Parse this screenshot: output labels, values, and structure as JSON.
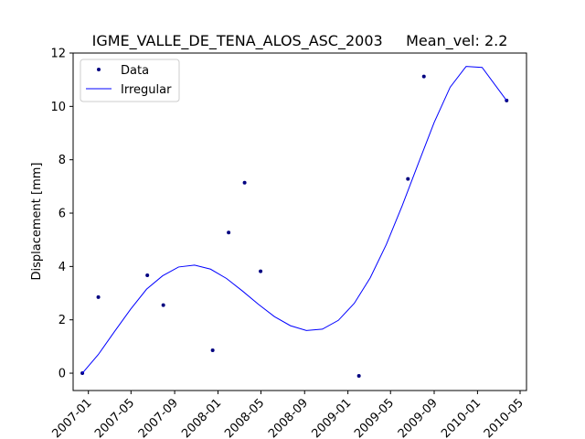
{
  "chart_data": {
    "type": "line",
    "title": "IGME_VALLE_DE_TENA_ALOS_ASC_2003     Mean_vel: 2.2",
    "xlabel": "",
    "ylabel": "Displacement [mm]",
    "x_range": [
      "2006-11-19",
      "2010-05-19"
    ],
    "ylim": [
      -0.65,
      12.0
    ],
    "x_ticks": [
      {
        "date": "2007-01-01",
        "label": "2007-01"
      },
      {
        "date": "2007-05-01",
        "label": "2007-05"
      },
      {
        "date": "2007-09-01",
        "label": "2007-09"
      },
      {
        "date": "2008-01-01",
        "label": "2008-01"
      },
      {
        "date": "2008-05-01",
        "label": "2008-05"
      },
      {
        "date": "2008-09-01",
        "label": "2008-09"
      },
      {
        "date": "2009-01-01",
        "label": "2009-01"
      },
      {
        "date": "2009-05-01",
        "label": "2009-05"
      },
      {
        "date": "2009-09-01",
        "label": "2009-09"
      },
      {
        "date": "2010-01-01",
        "label": "2010-01"
      },
      {
        "date": "2010-05-01",
        "label": "2010-05"
      }
    ],
    "y_ticks": [
      0,
      2,
      4,
      6,
      8,
      10,
      12
    ],
    "grid": false,
    "legend_position": "top-left",
    "series": [
      {
        "name": "Data",
        "kind": "scatter",
        "color": "#000080",
        "points": [
          {
            "x": "2006-12-15",
            "y": 0.0
          },
          {
            "x": "2007-01-29",
            "y": 2.85
          },
          {
            "x": "2007-06-16",
            "y": 3.67
          },
          {
            "x": "2007-07-31",
            "y": 2.55
          },
          {
            "x": "2007-12-17",
            "y": 0.86
          },
          {
            "x": "2008-01-31",
            "y": 5.27
          },
          {
            "x": "2008-03-16",
            "y": 7.14
          },
          {
            "x": "2008-04-30",
            "y": 3.82
          },
          {
            "x": "2009-02-01",
            "y": -0.1
          },
          {
            "x": "2009-06-19",
            "y": 7.28
          },
          {
            "x": "2009-08-03",
            "y": 11.12
          },
          {
            "x": "2010-03-24",
            "y": 10.22
          }
        ]
      },
      {
        "name": "Irregular",
        "kind": "line",
        "color": "#0000ff",
        "points": [
          {
            "x": "2006-12-15",
            "y": 0.0
          },
          {
            "x": "2007-01-29",
            "y": 0.7
          },
          {
            "x": "2007-03-15",
            "y": 1.55
          },
          {
            "x": "2007-04-30",
            "y": 2.4
          },
          {
            "x": "2007-06-14",
            "y": 3.15
          },
          {
            "x": "2007-07-29",
            "y": 3.65
          },
          {
            "x": "2007-09-12",
            "y": 3.98
          },
          {
            "x": "2007-10-27",
            "y": 4.05
          },
          {
            "x": "2007-12-11",
            "y": 3.9
          },
          {
            "x": "2008-01-25",
            "y": 3.55
          },
          {
            "x": "2008-03-10",
            "y": 3.08
          },
          {
            "x": "2008-04-24",
            "y": 2.58
          },
          {
            "x": "2008-06-08",
            "y": 2.12
          },
          {
            "x": "2008-07-23",
            "y": 1.78
          },
          {
            "x": "2008-09-06",
            "y": 1.6
          },
          {
            "x": "2008-10-21",
            "y": 1.65
          },
          {
            "x": "2008-12-05",
            "y": 1.98
          },
          {
            "x": "2009-01-19",
            "y": 2.62
          },
          {
            "x": "2009-03-05",
            "y": 3.58
          },
          {
            "x": "2009-04-19",
            "y": 4.82
          },
          {
            "x": "2009-06-03",
            "y": 6.28
          },
          {
            "x": "2009-07-18",
            "y": 7.85
          },
          {
            "x": "2009-09-01",
            "y": 9.4
          },
          {
            "x": "2009-10-16",
            "y": 10.72
          },
          {
            "x": "2009-11-30",
            "y": 11.5
          },
          {
            "x": "2010-01-14",
            "y": 11.46
          },
          {
            "x": "2010-03-24",
            "y": 10.22
          }
        ]
      }
    ]
  }
}
